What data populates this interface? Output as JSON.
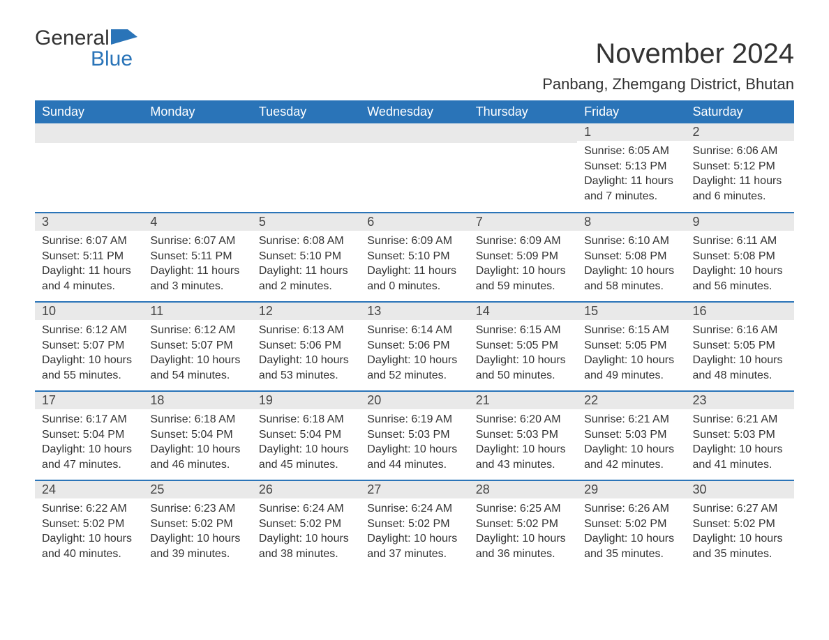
{
  "logo": {
    "text1": "General",
    "text2": "Blue"
  },
  "title": "November 2024",
  "location": "Panbang, Zhemgang District, Bhutan",
  "colors": {
    "header_bg": "#2a74b8",
    "header_fg": "#ffffff",
    "daybar_bg": "#e9e9e9",
    "row_border": "#2a74b8",
    "text": "#333333",
    "background": "#ffffff"
  },
  "typography": {
    "title_fontsize": 40,
    "location_fontsize": 22,
    "header_fontsize": 18,
    "daynum_fontsize": 18,
    "body_fontsize": 16
  },
  "day_headers": [
    "Sunday",
    "Monday",
    "Tuesday",
    "Wednesday",
    "Thursday",
    "Friday",
    "Saturday"
  ],
  "weeks": [
    [
      null,
      null,
      null,
      null,
      null,
      {
        "n": "1",
        "sunrise": "Sunrise: 6:05 AM",
        "sunset": "Sunset: 5:13 PM",
        "daylight": "Daylight: 11 hours and 7 minutes."
      },
      {
        "n": "2",
        "sunrise": "Sunrise: 6:06 AM",
        "sunset": "Sunset: 5:12 PM",
        "daylight": "Daylight: 11 hours and 6 minutes."
      }
    ],
    [
      {
        "n": "3",
        "sunrise": "Sunrise: 6:07 AM",
        "sunset": "Sunset: 5:11 PM",
        "daylight": "Daylight: 11 hours and 4 minutes."
      },
      {
        "n": "4",
        "sunrise": "Sunrise: 6:07 AM",
        "sunset": "Sunset: 5:11 PM",
        "daylight": "Daylight: 11 hours and 3 minutes."
      },
      {
        "n": "5",
        "sunrise": "Sunrise: 6:08 AM",
        "sunset": "Sunset: 5:10 PM",
        "daylight": "Daylight: 11 hours and 2 minutes."
      },
      {
        "n": "6",
        "sunrise": "Sunrise: 6:09 AM",
        "sunset": "Sunset: 5:10 PM",
        "daylight": "Daylight: 11 hours and 0 minutes."
      },
      {
        "n": "7",
        "sunrise": "Sunrise: 6:09 AM",
        "sunset": "Sunset: 5:09 PM",
        "daylight": "Daylight: 10 hours and 59 minutes."
      },
      {
        "n": "8",
        "sunrise": "Sunrise: 6:10 AM",
        "sunset": "Sunset: 5:08 PM",
        "daylight": "Daylight: 10 hours and 58 minutes."
      },
      {
        "n": "9",
        "sunrise": "Sunrise: 6:11 AM",
        "sunset": "Sunset: 5:08 PM",
        "daylight": "Daylight: 10 hours and 56 minutes."
      }
    ],
    [
      {
        "n": "10",
        "sunrise": "Sunrise: 6:12 AM",
        "sunset": "Sunset: 5:07 PM",
        "daylight": "Daylight: 10 hours and 55 minutes."
      },
      {
        "n": "11",
        "sunrise": "Sunrise: 6:12 AM",
        "sunset": "Sunset: 5:07 PM",
        "daylight": "Daylight: 10 hours and 54 minutes."
      },
      {
        "n": "12",
        "sunrise": "Sunrise: 6:13 AM",
        "sunset": "Sunset: 5:06 PM",
        "daylight": "Daylight: 10 hours and 53 minutes."
      },
      {
        "n": "13",
        "sunrise": "Sunrise: 6:14 AM",
        "sunset": "Sunset: 5:06 PM",
        "daylight": "Daylight: 10 hours and 52 minutes."
      },
      {
        "n": "14",
        "sunrise": "Sunrise: 6:15 AM",
        "sunset": "Sunset: 5:05 PM",
        "daylight": "Daylight: 10 hours and 50 minutes."
      },
      {
        "n": "15",
        "sunrise": "Sunrise: 6:15 AM",
        "sunset": "Sunset: 5:05 PM",
        "daylight": "Daylight: 10 hours and 49 minutes."
      },
      {
        "n": "16",
        "sunrise": "Sunrise: 6:16 AM",
        "sunset": "Sunset: 5:05 PM",
        "daylight": "Daylight: 10 hours and 48 minutes."
      }
    ],
    [
      {
        "n": "17",
        "sunrise": "Sunrise: 6:17 AM",
        "sunset": "Sunset: 5:04 PM",
        "daylight": "Daylight: 10 hours and 47 minutes."
      },
      {
        "n": "18",
        "sunrise": "Sunrise: 6:18 AM",
        "sunset": "Sunset: 5:04 PM",
        "daylight": "Daylight: 10 hours and 46 minutes."
      },
      {
        "n": "19",
        "sunrise": "Sunrise: 6:18 AM",
        "sunset": "Sunset: 5:04 PM",
        "daylight": "Daylight: 10 hours and 45 minutes."
      },
      {
        "n": "20",
        "sunrise": "Sunrise: 6:19 AM",
        "sunset": "Sunset: 5:03 PM",
        "daylight": "Daylight: 10 hours and 44 minutes."
      },
      {
        "n": "21",
        "sunrise": "Sunrise: 6:20 AM",
        "sunset": "Sunset: 5:03 PM",
        "daylight": "Daylight: 10 hours and 43 minutes."
      },
      {
        "n": "22",
        "sunrise": "Sunrise: 6:21 AM",
        "sunset": "Sunset: 5:03 PM",
        "daylight": "Daylight: 10 hours and 42 minutes."
      },
      {
        "n": "23",
        "sunrise": "Sunrise: 6:21 AM",
        "sunset": "Sunset: 5:03 PM",
        "daylight": "Daylight: 10 hours and 41 minutes."
      }
    ],
    [
      {
        "n": "24",
        "sunrise": "Sunrise: 6:22 AM",
        "sunset": "Sunset: 5:02 PM",
        "daylight": "Daylight: 10 hours and 40 minutes."
      },
      {
        "n": "25",
        "sunrise": "Sunrise: 6:23 AM",
        "sunset": "Sunset: 5:02 PM",
        "daylight": "Daylight: 10 hours and 39 minutes."
      },
      {
        "n": "26",
        "sunrise": "Sunrise: 6:24 AM",
        "sunset": "Sunset: 5:02 PM",
        "daylight": "Daylight: 10 hours and 38 minutes."
      },
      {
        "n": "27",
        "sunrise": "Sunrise: 6:24 AM",
        "sunset": "Sunset: 5:02 PM",
        "daylight": "Daylight: 10 hours and 37 minutes."
      },
      {
        "n": "28",
        "sunrise": "Sunrise: 6:25 AM",
        "sunset": "Sunset: 5:02 PM",
        "daylight": "Daylight: 10 hours and 36 minutes."
      },
      {
        "n": "29",
        "sunrise": "Sunrise: 6:26 AM",
        "sunset": "Sunset: 5:02 PM",
        "daylight": "Daylight: 10 hours and 35 minutes."
      },
      {
        "n": "30",
        "sunrise": "Sunrise: 6:27 AM",
        "sunset": "Sunset: 5:02 PM",
        "daylight": "Daylight: 10 hours and 35 minutes."
      }
    ]
  ]
}
